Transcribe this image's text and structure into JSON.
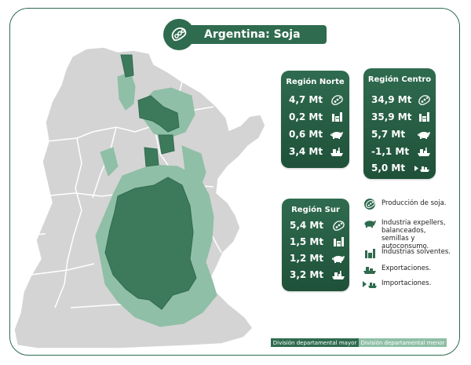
{
  "title": "Argentina: Soja",
  "colors": {
    "frame": "#2f6b4f",
    "land": "#d4d4d4",
    "border": "#ffffff",
    "mayor": "#2f6b4f",
    "menor": "#8fbfa6",
    "card": "#2f6b4f"
  },
  "regions": {
    "norte": {
      "title": "Región Norte",
      "rows": [
        {
          "value": "4,7 Mt",
          "icon": "soybean-icon"
        },
        {
          "value": "0,2 Mt",
          "icon": "solvent-industry-icon"
        },
        {
          "value": "0,6 Mt",
          "icon": "pig-icon"
        },
        {
          "value": "3,4 Mt",
          "icon": "ship-icon"
        }
      ]
    },
    "centro": {
      "title": "Región Centro",
      "rows": [
        {
          "value": "34,9 Mt",
          "icon": "soybean-icon"
        },
        {
          "value": "35,9 Mt",
          "icon": "solvent-industry-icon"
        },
        {
          "value": "5,7 Mt",
          "icon": "pig-icon"
        },
        {
          "value": "-1,1 Mt",
          "icon": "ship-icon"
        },
        {
          "value": "5,0 Mt",
          "icon": "import-icon"
        }
      ]
    },
    "sur": {
      "title": "Región Sur",
      "rows": [
        {
          "value": "5,4 Mt",
          "icon": "soybean-icon"
        },
        {
          "value": "1,5 Mt",
          "icon": "solvent-industry-icon"
        },
        {
          "value": "1,2 Mt",
          "icon": "pig-icon"
        },
        {
          "value": "3,2 Mt",
          "icon": "ship-icon"
        }
      ]
    }
  },
  "legend": [
    {
      "label": "Producción de soja.",
      "icon": "soybean-icon"
    },
    {
      "label": "Industria expellers, balanceados, semillas y autoconsumo.",
      "icon": "pig-icon"
    },
    {
      "label": "Industrias solventes.",
      "icon": "solvent-industry-icon"
    },
    {
      "label": "Exportaciones.",
      "icon": "ship-icon"
    },
    {
      "label": "Importaciones.",
      "icon": "import-icon"
    }
  ],
  "division": {
    "mayor": "División departamental mayor",
    "menor": "División departamental menor"
  }
}
